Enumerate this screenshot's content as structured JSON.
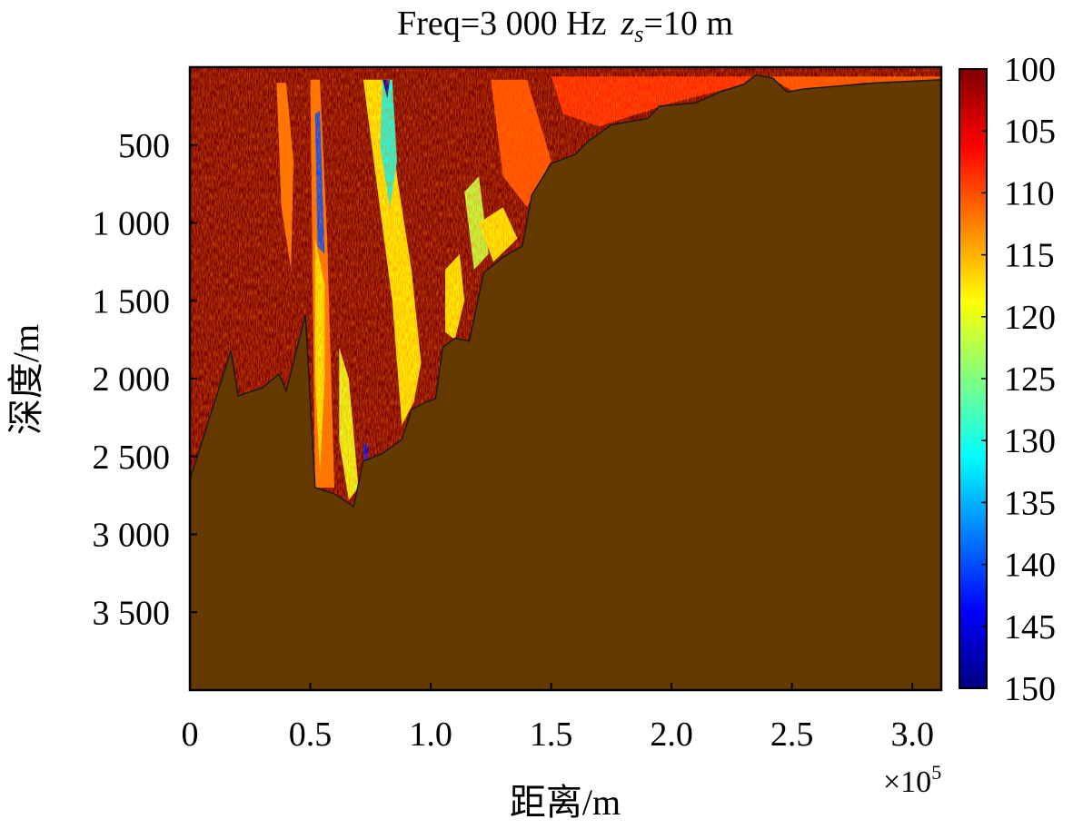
{
  "chart_data": {
    "type": "heatmap",
    "title_prefix": "Freq=3 000 Hz",
    "title_source_var": "z",
    "title_source_sub": "s",
    "title_suffix": "=10 m",
    "xlabel": "距离/m",
    "ylabel": "深度/m",
    "x_multiplier": "×10",
    "x_multiplier_exp": "5",
    "xlim": [
      0,
      3.12
    ],
    "ylim": [
      0,
      4000
    ],
    "x_ticks": [
      0,
      0.5,
      1.0,
      1.5,
      2.0,
      2.5,
      3.0
    ],
    "x_tick_labels": [
      "0",
      "0.5",
      "1.0",
      "1.5",
      "2.0",
      "2.5",
      "3.0"
    ],
    "y_ticks": [
      500,
      1000,
      1500,
      2000,
      2500,
      3000,
      3500
    ],
    "y_tick_labels": [
      "500",
      "1 000",
      "1 500",
      "2 000",
      "2 500",
      "3 000",
      "3 500"
    ],
    "colorbar": {
      "min": 100,
      "max": 150,
      "ticks": [
        100,
        105,
        110,
        115,
        120,
        125,
        130,
        135,
        140,
        145,
        150
      ],
      "tick_labels": [
        "100",
        "105",
        "110",
        "115",
        "120",
        "125",
        "130",
        "135",
        "140",
        "145",
        "150"
      ],
      "colormap": "jet-reversed"
    },
    "seabed_color": "#643a00",
    "water_base_color": "#7a0000",
    "bathymetry": [
      [
        0,
        2650
      ],
      [
        0.17,
        1820
      ],
      [
        0.2,
        2110
      ],
      [
        0.3,
        2060
      ],
      [
        0.37,
        1970
      ],
      [
        0.4,
        2080
      ],
      [
        0.48,
        1590
      ],
      [
        0.52,
        2700
      ],
      [
        0.6,
        2740
      ],
      [
        0.68,
        2820
      ],
      [
        0.72,
        2530
      ],
      [
        0.8,
        2480
      ],
      [
        0.88,
        2390
      ],
      [
        0.92,
        2200
      ],
      [
        0.98,
        2150
      ],
      [
        1.02,
        2130
      ],
      [
        1.05,
        1800
      ],
      [
        1.1,
        1740
      ],
      [
        1.16,
        1760
      ],
      [
        1.22,
        1320
      ],
      [
        1.3,
        1220
      ],
      [
        1.38,
        1150
      ],
      [
        1.42,
        820
      ],
      [
        1.5,
        620
      ],
      [
        1.6,
        560
      ],
      [
        1.65,
        480
      ],
      [
        1.75,
        370
      ],
      [
        1.9,
        330
      ],
      [
        1.95,
        250
      ],
      [
        2.1,
        230
      ],
      [
        2.2,
        160
      ],
      [
        2.3,
        110
      ],
      [
        2.35,
        50
      ],
      [
        2.42,
        70
      ],
      [
        2.48,
        160
      ],
      [
        2.55,
        140
      ],
      [
        2.7,
        120
      ],
      [
        2.85,
        100
      ],
      [
        3.0,
        90
      ],
      [
        3.12,
        80
      ]
    ],
    "field_patches": [
      {
        "level": 112,
        "points": [
          [
            0.5,
            80
          ],
          [
            0.54,
            80
          ],
          [
            0.57,
            1100
          ],
          [
            0.6,
            2700
          ],
          [
            0.52,
            2700
          ]
        ]
      },
      {
        "level": 140,
        "points": [
          [
            0.52,
            300
          ],
          [
            0.54,
            280
          ],
          [
            0.56,
            1200
          ],
          [
            0.53,
            1150
          ]
        ]
      },
      {
        "level": 118,
        "points": [
          [
            0.72,
            80
          ],
          [
            0.82,
            80
          ],
          [
            0.86,
            700
          ],
          [
            0.92,
            1300
          ],
          [
            0.96,
            1900
          ],
          [
            0.93,
            2150
          ],
          [
            0.88,
            2300
          ],
          [
            0.84,
            1500
          ],
          [
            0.78,
            800
          ]
        ]
      },
      {
        "level": 130,
        "points": [
          [
            0.8,
            80
          ],
          [
            0.84,
            80
          ],
          [
            0.86,
            600
          ],
          [
            0.83,
            900
          ],
          [
            0.79,
            500
          ]
        ]
      },
      {
        "level": 148,
        "points": [
          [
            0.8,
            80
          ],
          [
            0.82,
            200
          ],
          [
            0.83,
            80
          ]
        ]
      },
      {
        "level": 118,
        "points": [
          [
            0.52,
            1100
          ],
          [
            0.56,
            1400
          ],
          [
            0.56,
            2000
          ],
          [
            0.54,
            2600
          ],
          [
            0.52,
            2000
          ]
        ]
      },
      {
        "level": 120,
        "points": [
          [
            0.62,
            1800
          ],
          [
            0.66,
            2000
          ],
          [
            0.7,
            2700
          ],
          [
            0.66,
            2780
          ],
          [
            0.62,
            2400
          ]
        ]
      },
      {
        "level": 118,
        "points": [
          [
            1.06,
            1300
          ],
          [
            1.12,
            1200
          ],
          [
            1.14,
            1500
          ],
          [
            1.1,
            1750
          ],
          [
            1.06,
            1700
          ]
        ]
      },
      {
        "level": 122,
        "points": [
          [
            1.14,
            800
          ],
          [
            1.2,
            700
          ],
          [
            1.24,
            1200
          ],
          [
            1.18,
            1300
          ]
        ]
      },
      {
        "level": 112,
        "points": [
          [
            0.36,
            100
          ],
          [
            0.4,
            100
          ],
          [
            0.43,
            600
          ],
          [
            0.42,
            1300
          ],
          [
            0.38,
            900
          ]
        ]
      },
      {
        "level": 110,
        "points": [
          [
            1.25,
            80
          ],
          [
            1.4,
            80
          ],
          [
            1.5,
            600
          ],
          [
            1.4,
            900
          ],
          [
            1.3,
            700
          ]
        ]
      },
      {
        "level": 118,
        "points": [
          [
            1.2,
            1000
          ],
          [
            1.3,
            900
          ],
          [
            1.36,
            1100
          ],
          [
            1.26,
            1250
          ]
        ]
      },
      {
        "level": 108,
        "points": [
          [
            1.5,
            60
          ],
          [
            2.4,
            60
          ],
          [
            2.3,
            110
          ],
          [
            2.0,
            230
          ],
          [
            1.7,
            380
          ],
          [
            1.55,
            300
          ]
        ]
      },
      {
        "level": 110,
        "points": [
          [
            2.4,
            60
          ],
          [
            3.12,
            60
          ],
          [
            3.12,
            80
          ],
          [
            2.8,
            100
          ],
          [
            2.5,
            150
          ]
        ]
      },
      {
        "level": 145,
        "points": [
          [
            0.72,
            2420
          ],
          [
            0.74,
            2420
          ],
          [
            0.74,
            2530
          ],
          [
            0.72,
            2550
          ]
        ]
      }
    ]
  }
}
